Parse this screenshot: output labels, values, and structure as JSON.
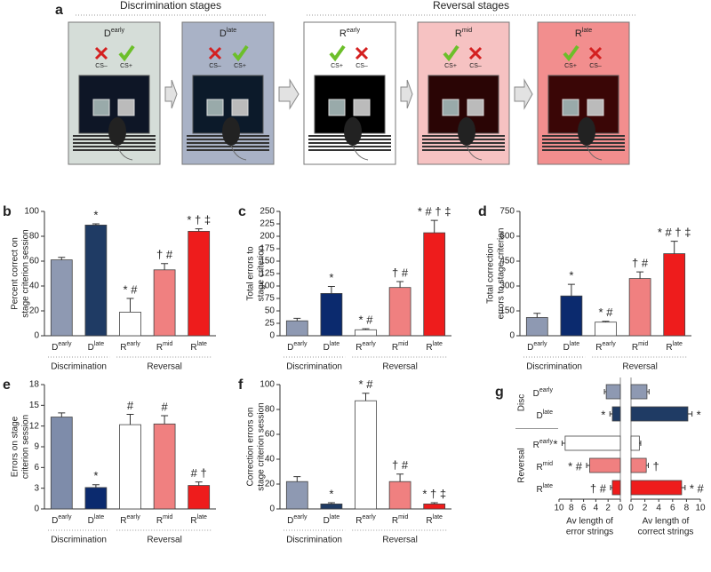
{
  "diagram": {
    "panel": "a",
    "headers": [
      "Discrimination stages",
      "Reversal stages"
    ],
    "stages": [
      {
        "label": {
          "base": "D",
          "sup": "early"
        },
        "cues": [
          "CS–",
          "CS+"
        ]
      },
      {
        "label": {
          "base": "D",
          "sup": "late"
        },
        "cues": [
          "CS–",
          "CS+"
        ]
      },
      {
        "label": {
          "base": "R",
          "sup": "early"
        },
        "cues": [
          "CS+",
          "CS–"
        ]
      },
      {
        "label": {
          "base": "R",
          "sup": "mid"
        },
        "cues": [
          "CS+",
          "CS–"
        ]
      },
      {
        "label": {
          "base": "R",
          "sup": "late"
        },
        "cues": [
          "CS+",
          "CS–"
        ]
      }
    ]
  },
  "chart_data": [
    {
      "type": "bar",
      "panel": "b",
      "ylabel": [
        "Percent correct on",
        "stage criterion session"
      ],
      "categories": [
        {
          "base": "D",
          "sup": "early"
        },
        {
          "base": "D",
          "sup": "late"
        },
        {
          "base": "R",
          "sup": "early"
        },
        {
          "base": "R",
          "sup": "mid"
        },
        {
          "base": "R",
          "sup": "late"
        }
      ],
      "groups": [
        "Discrimination",
        "Reversal"
      ],
      "values": [
        61,
        89,
        19,
        53,
        84
      ],
      "errors": [
        2,
        1,
        11,
        5,
        2
      ],
      "annotations": [
        null,
        "*",
        "* #",
        "† #",
        "* † ‡"
      ],
      "colors": [
        "#8e99b2",
        "#1f3b64",
        "#ffffff",
        "#f08080",
        "#ee1c1c"
      ],
      "ylim": [
        0,
        100
      ],
      "yticks": [
        0,
        20,
        40,
        60,
        80,
        100
      ]
    },
    {
      "type": "bar",
      "panel": "c",
      "ylabel": [
        "Total errors to",
        "stage criterion"
      ],
      "categories": [
        {
          "base": "D",
          "sup": "early"
        },
        {
          "base": "D",
          "sup": "late"
        },
        {
          "base": "R",
          "sup": "early"
        },
        {
          "base": "R",
          "sup": "mid"
        },
        {
          "base": "R",
          "sup": "late"
        }
      ],
      "groups": [
        "Discrimination",
        "Reversal"
      ],
      "values": [
        30,
        85,
        12,
        97,
        207
      ],
      "errors": [
        5,
        14,
        2,
        12,
        25
      ],
      "annotations": [
        null,
        "*",
        "* #",
        "† #",
        "* # † ‡"
      ],
      "colors": [
        "#8e99b2",
        "#0b2a6e",
        "#ffffff",
        "#f08080",
        "#ee1c1c"
      ],
      "ylim": [
        0,
        250
      ],
      "yticks": [
        0,
        25,
        50,
        75,
        100,
        125,
        150,
        175,
        200,
        225,
        250
      ]
    },
    {
      "type": "bar",
      "panel": "d",
      "ylabel": [
        "Total correction",
        "errors to stage criterion"
      ],
      "categories": [
        {
          "base": "D",
          "sup": "early"
        },
        {
          "base": "D",
          "sup": "late"
        },
        {
          "base": "R",
          "sup": "early"
        },
        {
          "base": "R",
          "sup": "mid"
        },
        {
          "base": "R",
          "sup": "late"
        }
      ],
      "groups": [
        "Discrimination",
        "Reversal"
      ],
      "values": [
        110,
        240,
        82,
        345,
        495
      ],
      "errors": [
        25,
        70,
        5,
        40,
        75
      ],
      "annotations": [
        null,
        "*",
        "* #",
        "† #",
        "* # † ‡"
      ],
      "colors": [
        "#8e99b2",
        "#0b2a6e",
        "#ffffff",
        "#f08080",
        "#ee1c1c"
      ],
      "ylim": [
        0,
        750
      ],
      "yticks": [
        0,
        150,
        300,
        450,
        600,
        750
      ]
    },
    {
      "type": "bar",
      "panel": "e",
      "ylabel": [
        "Errors on stage",
        "criterion session"
      ],
      "categories": [
        {
          "base": "D",
          "sup": "early"
        },
        {
          "base": "D",
          "sup": "late"
        },
        {
          "base": "R",
          "sup": "early"
        },
        {
          "base": "R",
          "sup": "mid"
        },
        {
          "base": "R",
          "sup": "late"
        }
      ],
      "groups": [
        "Discrimination",
        "Reversal"
      ],
      "values": [
        13.3,
        3.1,
        12.2,
        12.3,
        3.4
      ],
      "errors": [
        0.6,
        0.4,
        1.5,
        1.2,
        0.5
      ],
      "annotations": [
        null,
        "*",
        "#",
        "#",
        "# †"
      ],
      "colors": [
        "#7e8caa",
        "#0b2a6e",
        "#ffffff",
        "#f08080",
        "#ee1c1c"
      ],
      "ylim": [
        0,
        18
      ],
      "yticks": [
        0,
        3,
        6,
        9,
        12,
        15,
        18
      ]
    },
    {
      "type": "bar",
      "panel": "f",
      "ylabel": [
        "Correction errors on",
        "stage criterion session"
      ],
      "categories": [
        {
          "base": "D",
          "sup": "early"
        },
        {
          "base": "D",
          "sup": "late"
        },
        {
          "base": "R",
          "sup": "early"
        },
        {
          "base": "R",
          "sup": "mid"
        },
        {
          "base": "R",
          "sup": "late"
        }
      ],
      "groups": [
        "Discrimination",
        "Reversal"
      ],
      "values": [
        22,
        4,
        87,
        22,
        4
      ],
      "errors": [
        4,
        1,
        6,
        6,
        1
      ],
      "annotations": [
        null,
        "*",
        "* #",
        "† #",
        "* † ‡"
      ],
      "colors": [
        "#8e99b2",
        "#1f3b64",
        "#ffffff",
        "#f08080",
        "#ee1c1c"
      ],
      "ylim": [
        0,
        100
      ],
      "yticks": [
        0,
        20,
        40,
        60,
        80,
        100
      ]
    },
    {
      "type": "barh_pair",
      "panel": "g",
      "categories": [
        {
          "base": "D",
          "sup": "early"
        },
        {
          "base": "D",
          "sup": "late"
        },
        {
          "base": "R",
          "sup": "early"
        },
        {
          "base": "R",
          "sup": "mid"
        },
        {
          "base": "R",
          "sup": "late"
        }
      ],
      "groups": [
        "Disc",
        "Reversal"
      ],
      "colors": [
        "#8e99b2",
        "#1f3b64",
        "#ffffff",
        "#f08080",
        "#ee1c1c"
      ],
      "left": {
        "xlabel": [
          "Av length of",
          "error strings"
        ],
        "xlim": [
          10,
          0
        ],
        "xticks": [
          10,
          8,
          6,
          4,
          2,
          0
        ],
        "values": [
          2.3,
          1.3,
          9.0,
          5.0,
          1.3
        ],
        "errors": [
          0.3,
          0.4,
          0.5,
          0.5,
          0.3
        ],
        "annotations": [
          null,
          "*",
          "*",
          "* #",
          "† #"
        ]
      },
      "right": {
        "xlabel": [
          "Av length of",
          "correct strings"
        ],
        "xlim": [
          0,
          10
        ],
        "xticks": [
          0,
          2,
          4,
          6,
          8,
          10
        ],
        "values": [
          2.3,
          8.2,
          1.2,
          2.2,
          7.3
        ],
        "errors": [
          0.3,
          0.6,
          0.2,
          0.3,
          0.5
        ],
        "annotations": [
          null,
          "*",
          null,
          "†",
          "* #"
        ]
      }
    }
  ]
}
